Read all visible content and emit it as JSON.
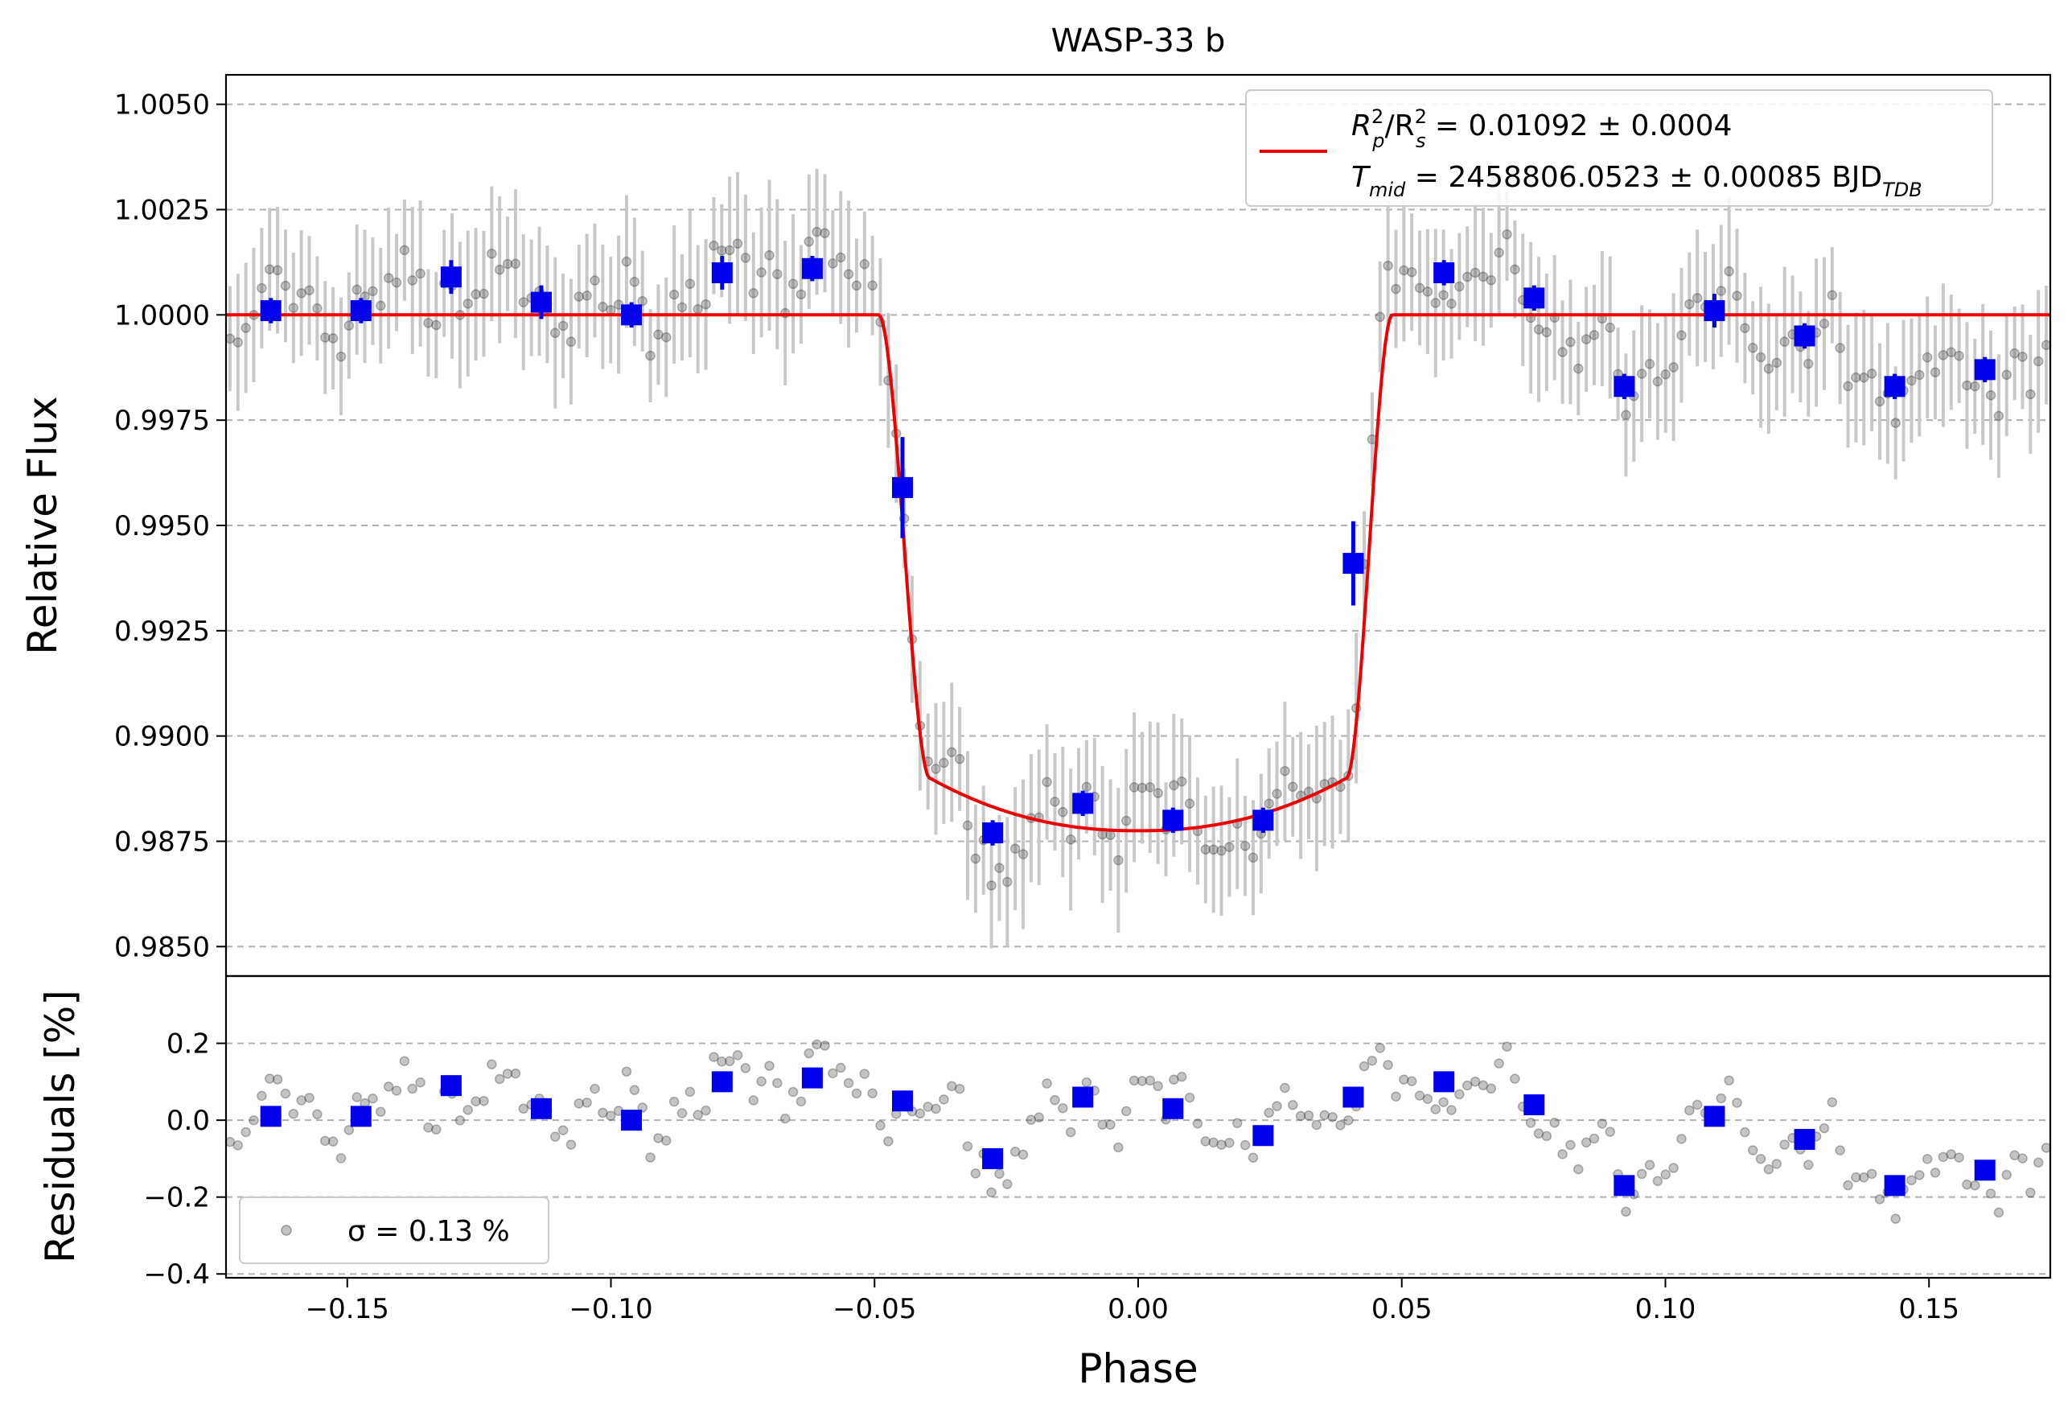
{
  "chart_data": [
    {
      "type": "scatter",
      "title": "WASP-33 b",
      "xlabel": "Phase",
      "ylabel": "Relative Flux",
      "xlim": [
        -0.173,
        0.173
      ],
      "ylim": [
        0.9843,
        1.0057
      ],
      "grid": "horizontal dashed",
      "yticks": [
        "0.9850",
        "0.9875",
        "0.9900",
        "0.9925",
        "0.9950",
        "0.9975",
        "1.0000",
        "1.0025",
        "1.0050"
      ],
      "legend": {
        "position": "top-right",
        "line1": {
          "main": "R",
          "sub1": "p",
          "sup1": "2",
          "slash": "/R",
          "sub2": "s",
          "sup2": "2",
          "rest": " = 0.01092 ± 0.0004"
        },
        "line2": {
          "main": "T",
          "sub1": "mid",
          "rest": " = 2458806.0523 ± 0.00085 BJD",
          "sub2": "TDB"
        }
      },
      "colors": {
        "raw": "#555555",
        "errorbar": "#c8c8c8",
        "binned": "#0000ee",
        "model": "#ee0000"
      },
      "model": {
        "depth": 0.01092,
        "t1": -0.0492,
        "t2": -0.0395,
        "t3": 0.0395,
        "t4": 0.0482,
        "floor": 0.98775
      },
      "binned": {
        "x": [
          -0.1645,
          -0.1474,
          -0.1303,
          -0.1132,
          -0.0961,
          -0.0789,
          -0.0618,
          -0.0447,
          -0.0276,
          -0.0105,
          0.0066,
          0.0237,
          0.0408,
          0.058,
          0.0751,
          0.0922,
          0.1093,
          0.1264,
          0.1435,
          0.1606
        ],
        "y": [
          1.0001,
          1.0001,
          1.0009,
          1.0003,
          1.0,
          1.001,
          1.0011,
          0.9959,
          0.9877,
          0.9884,
          0.988,
          0.988,
          0.9941,
          1.001,
          1.0004,
          0.9983,
          1.0001,
          0.9995,
          0.9983,
          0.9987
        ],
        "err": [
          0.0003,
          0.0003,
          0.0004,
          0.0004,
          0.0003,
          0.0004,
          0.0003,
          0.0012,
          0.0003,
          0.0003,
          0.0003,
          0.0003,
          0.001,
          0.0003,
          0.0003,
          0.0003,
          0.0004,
          0.0003,
          0.0003,
          0.0003
        ]
      }
    },
    {
      "type": "scatter",
      "ylabel": "Residuals [%]",
      "xlim": [
        -0.173,
        0.173
      ],
      "ylim": [
        -0.41,
        0.375
      ],
      "grid": "horizontal dashed",
      "xticks": [
        "−0.15",
        "−0.10",
        "−0.05",
        "0.00",
        "0.05",
        "0.10",
        "0.15"
      ],
      "yticks": [
        "−0.4",
        "−0.2",
        "0.0",
        "0.2"
      ],
      "legend": {
        "position": "bottom-left",
        "label": "σ = 0.13 %"
      },
      "binned": {
        "x": [
          -0.1645,
          -0.1474,
          -0.1303,
          -0.1132,
          -0.0961,
          -0.0789,
          -0.0618,
          -0.0447,
          -0.0276,
          -0.0105,
          0.0066,
          0.0237,
          0.0408,
          0.058,
          0.0751,
          0.0922,
          0.1093,
          0.1264,
          0.1435,
          0.1606
        ],
        "y": [
          0.01,
          0.01,
          0.09,
          0.03,
          0.0,
          0.1,
          0.11,
          0.05,
          -0.1,
          0.06,
          0.03,
          -0.04,
          0.06,
          0.1,
          0.04,
          -0.17,
          0.01,
          -0.05,
          -0.17,
          -0.13
        ]
      }
    }
  ]
}
